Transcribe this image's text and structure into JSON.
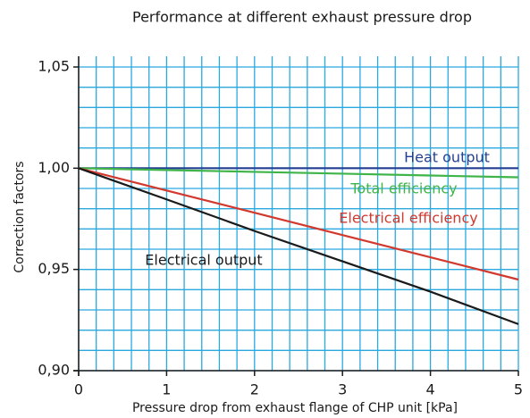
{
  "chart_data": {
    "type": "line",
    "title": "Performance at different exhaust pressure drop",
    "x_label": "Pressure drop from exhaust flange of CHP unit [kPa]",
    "y_label": "Correction factors",
    "x": [
      0,
      1,
      2,
      3,
      4,
      5
    ],
    "series": [
      {
        "name": "Heat output",
        "color": "#233f94",
        "values": [
          1.0,
          1.0,
          1.0,
          1.0,
          1.0,
          1.0
        ]
      },
      {
        "name": "Total efficiency",
        "color": "#3fb449",
        "values": [
          1.0,
          0.9991,
          0.9982,
          0.9973,
          0.9964,
          0.9955
        ]
      },
      {
        "name": "Electrical efficiency",
        "color": "#d2392e",
        "values": [
          1.0,
          0.989,
          0.978,
          0.967,
          0.956,
          0.945
        ]
      },
      {
        "name": "Electrical output",
        "color": "#1a1a1a",
        "values": [
          1.0,
          0.9846,
          0.969,
          0.954,
          0.939,
          0.923
        ]
      }
    ],
    "xlim": [
      0,
      5
    ],
    "ylim": [
      0.9,
      1.05
    ],
    "xticks": [
      0,
      1,
      2,
      3,
      4,
      5
    ],
    "yticks": [
      {
        "value": 0.9,
        "label": "0,90"
      },
      {
        "value": 0.95,
        "label": "0,95"
      },
      {
        "value": 1.0,
        "label": "1,00"
      },
      {
        "value": 1.05,
        "label": "1,05"
      }
    ],
    "minor_xticks": [
      0.2,
      0.4,
      0.6,
      0.8,
      1.2,
      1.4,
      1.6,
      1.8,
      2.2,
      2.4,
      2.6,
      2.8,
      3.2,
      3.4,
      3.6,
      3.8,
      4.2,
      4.4,
      4.6,
      4.8
    ],
    "minor_yticks": [
      0.91,
      0.92,
      0.93,
      0.94,
      0.96,
      0.97,
      0.98,
      0.99,
      1.01,
      1.02,
      1.03,
      1.04
    ],
    "grid": true,
    "grid_color": "#29a9e0"
  }
}
